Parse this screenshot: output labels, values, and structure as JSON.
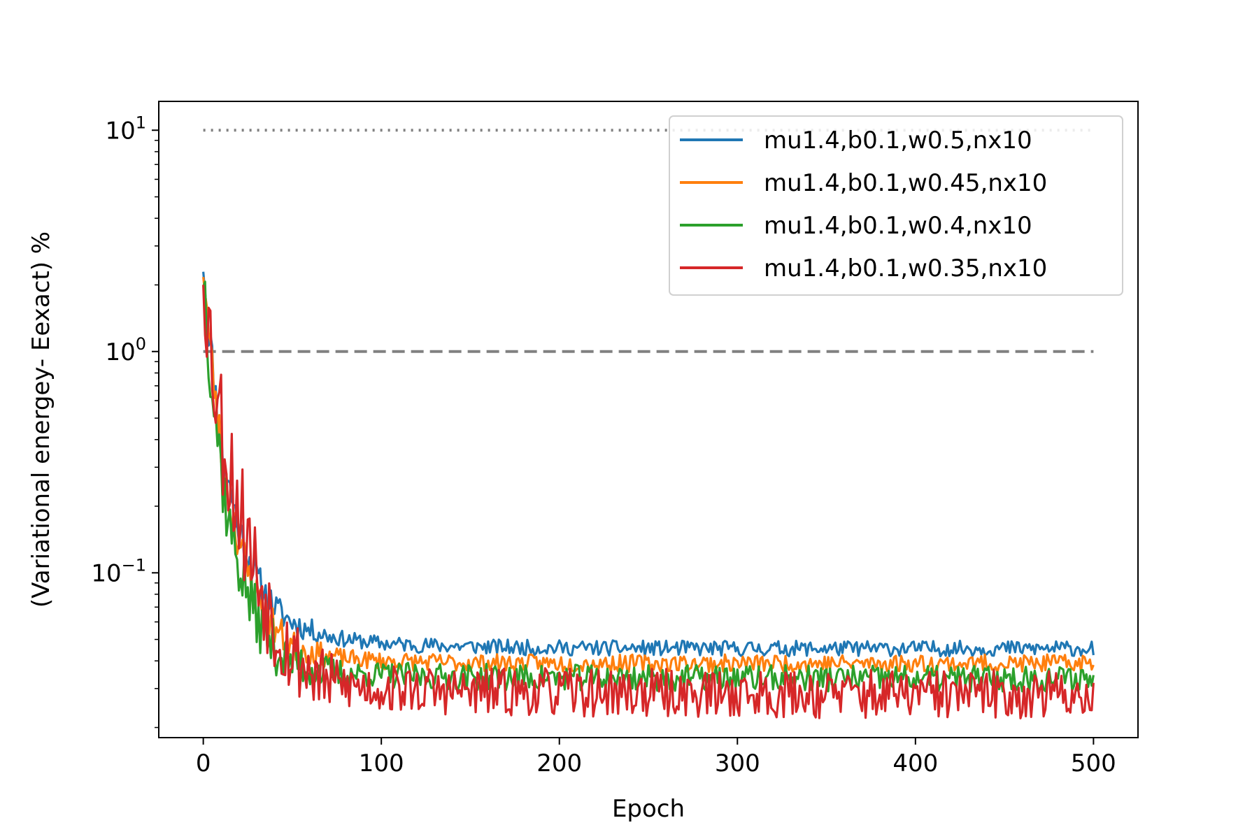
{
  "chart_data": {
    "type": "line",
    "title": "",
    "xlabel": "Epoch",
    "ylabel": "(Variational energey- Eexact) %",
    "xlim": [
      -25,
      525
    ],
    "ylim": [
      0.018,
      13.5
    ],
    "yscale": "log",
    "grid": false,
    "legend_position": "top-right",
    "x_ticks": [
      0,
      100,
      200,
      300,
      400,
      500
    ],
    "y_ticks": [
      {
        "value": 10,
        "base": "10",
        "exp": "1"
      },
      {
        "value": 1,
        "base": "10",
        "exp": "0"
      },
      {
        "value": 0.1,
        "base": "10",
        "exp": "−1"
      }
    ],
    "reference_lines": [
      {
        "y": 10,
        "style": "dotted",
        "color": "#808080",
        "x": [
          0,
          500
        ]
      },
      {
        "y": 1,
        "style": "dashed",
        "color": "#808080",
        "x": [
          0,
          500
        ]
      }
    ],
    "series": [
      {
        "name": "mu1.4,b0.1,w0.5,nx10",
        "color": "#1f77b4",
        "points": [
          [
            0,
            2.6
          ],
          [
            3,
            1.3
          ],
          [
            6,
            0.75
          ],
          [
            9,
            0.45
          ],
          [
            12,
            0.3
          ],
          [
            15,
            0.24
          ],
          [
            20,
            0.16
          ],
          [
            25,
            0.12
          ],
          [
            30,
            0.095
          ],
          [
            35,
            0.08
          ],
          [
            40,
            0.07
          ],
          [
            45,
            0.064
          ],
          [
            50,
            0.06
          ],
          [
            55,
            0.057
          ],
          [
            60,
            0.055
          ],
          [
            70,
            0.052
          ],
          [
            80,
            0.05
          ],
          [
            90,
            0.049
          ],
          [
            100,
            0.048
          ],
          [
            125,
            0.047
          ],
          [
            150,
            0.0465
          ],
          [
            175,
            0.046
          ],
          [
            200,
            0.0458
          ],
          [
            250,
            0.0456
          ],
          [
            300,
            0.0455
          ],
          [
            350,
            0.0455
          ],
          [
            400,
            0.0455
          ],
          [
            450,
            0.0455
          ],
          [
            500,
            0.0455
          ]
        ],
        "noise": 0.035,
        "seed": 11
      },
      {
        "name": "mu1.4,b0.1,w0.45,nx10",
        "color": "#ff7f0e",
        "points": [
          [
            0,
            2.5
          ],
          [
            3,
            1.2
          ],
          [
            6,
            0.7
          ],
          [
            9,
            0.42
          ],
          [
            12,
            0.27
          ],
          [
            15,
            0.2
          ],
          [
            20,
            0.14
          ],
          [
            25,
            0.1
          ],
          [
            30,
            0.08
          ],
          [
            35,
            0.066
          ],
          [
            40,
            0.057
          ],
          [
            45,
            0.051
          ],
          [
            50,
            0.047
          ],
          [
            60,
            0.044
          ],
          [
            70,
            0.042
          ],
          [
            80,
            0.041
          ],
          [
            100,
            0.04
          ],
          [
            125,
            0.0395
          ],
          [
            150,
            0.0392
          ],
          [
            200,
            0.039
          ],
          [
            300,
            0.039
          ],
          [
            400,
            0.039
          ],
          [
            500,
            0.039
          ]
        ],
        "noise": 0.04,
        "seed": 23
      },
      {
        "name": "mu1.4,b0.1,w0.4,nx10",
        "color": "#2ca02c",
        "points": [
          [
            0,
            2.4
          ],
          [
            3,
            1.1
          ],
          [
            6,
            0.6
          ],
          [
            9,
            0.36
          ],
          [
            12,
            0.22
          ],
          [
            15,
            0.16
          ],
          [
            20,
            0.11
          ],
          [
            25,
            0.08
          ],
          [
            30,
            0.063
          ],
          [
            35,
            0.052
          ],
          [
            40,
            0.046
          ],
          [
            45,
            0.042
          ],
          [
            50,
            0.04
          ],
          [
            60,
            0.037
          ],
          [
            70,
            0.0355
          ],
          [
            80,
            0.035
          ],
          [
            100,
            0.0345
          ],
          [
            125,
            0.034
          ],
          [
            150,
            0.0338
          ],
          [
            200,
            0.0336
          ],
          [
            300,
            0.0334
          ],
          [
            400,
            0.0333
          ],
          [
            500,
            0.0333
          ]
        ],
        "noise": 0.06,
        "seed": 37
      },
      {
        "name": "mu1.4,b0.1,w0.35,nx10",
        "color": "#d62728",
        "points": [
          [
            0,
            2.9
          ],
          [
            3,
            1.3
          ],
          [
            6,
            0.85
          ],
          [
            9,
            0.55
          ],
          [
            12,
            0.38
          ],
          [
            15,
            0.3
          ],
          [
            20,
            0.2
          ],
          [
            25,
            0.14
          ],
          [
            30,
            0.1
          ],
          [
            35,
            0.077
          ],
          [
            40,
            0.06
          ],
          [
            45,
            0.05
          ],
          [
            50,
            0.043
          ],
          [
            60,
            0.036
          ],
          [
            70,
            0.032
          ],
          [
            80,
            0.031
          ],
          [
            100,
            0.03
          ],
          [
            150,
            0.029
          ],
          [
            200,
            0.0288
          ],
          [
            300,
            0.0284
          ],
          [
            400,
            0.0282
          ],
          [
            500,
            0.0282
          ]
        ],
        "noise": 0.11,
        "seed": 53
      }
    ]
  }
}
